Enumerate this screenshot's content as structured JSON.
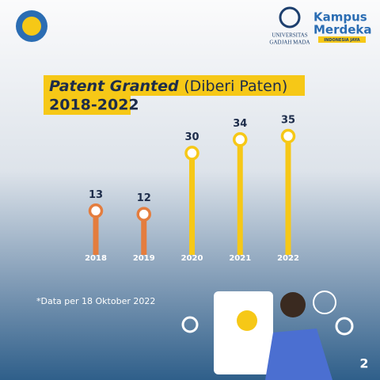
{
  "chart_data": {
    "type": "lollipop",
    "title": "Patent Granted",
    "title_suffix": "(Diberi Paten)",
    "subtitle": "2018-2022",
    "categories": [
      "2018",
      "2019",
      "2020",
      "2021",
      "2022"
    ],
    "values": [
      13,
      12,
      30,
      34,
      35
    ],
    "colors": [
      "#e47d3e",
      "#e47d3e",
      "#f6c817",
      "#f6c817",
      "#f6c817"
    ],
    "note": "*Data per 18 Oktober 2022"
  },
  "logos": {
    "university": [
      "UNIVERSITAS",
      "GADJAH MADA"
    ],
    "program": [
      "Kampus",
      "Merdeka"
    ],
    "tagline": "INDONESIA JAYA"
  },
  "page_number": "2"
}
